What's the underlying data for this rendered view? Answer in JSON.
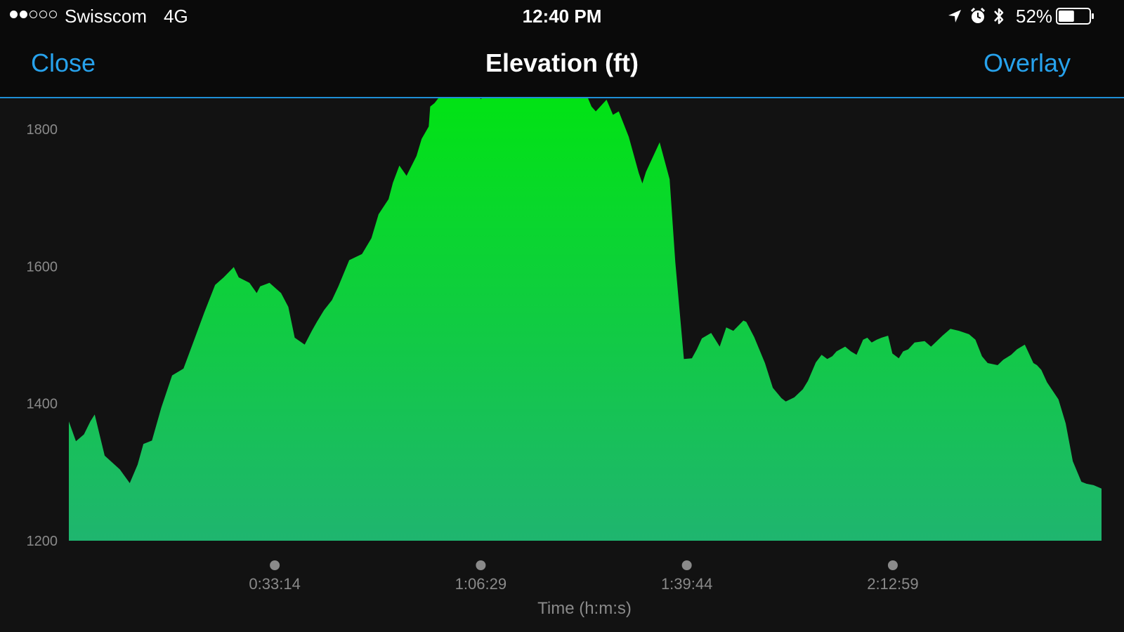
{
  "status_bar": {
    "carrier": "Swisscom",
    "network": "4G",
    "time": "12:40 PM",
    "battery_percent": "52%",
    "battery_level": 0.52,
    "signal_bars_filled": 2,
    "signal_bars_total": 5,
    "icons": [
      "location-arrow-icon",
      "alarm-icon",
      "bluetooth-icon",
      "battery-icon"
    ]
  },
  "nav": {
    "close_label": "Close",
    "title": "Elevation (ft)",
    "overlay_label": "Overlay"
  },
  "colors": {
    "accent": "#27a2ec",
    "fill_top": "#00e510",
    "fill_bottom": "#1fb56f",
    "background": "#121212",
    "bar_background": "#0a0a0a"
  },
  "chart_data": {
    "type": "area",
    "title": "Elevation (ft)",
    "xlabel": "Time (h:m:s)",
    "ylabel": "",
    "ylim": [
      1200,
      1800
    ],
    "y_ticks": [
      1800,
      1600,
      1400,
      1200
    ],
    "x_ticks": [
      {
        "seconds": 1994,
        "label": "0:33:14"
      },
      {
        "seconds": 3989,
        "label": "1:06:29"
      },
      {
        "seconds": 5984,
        "label": "1:39:44"
      },
      {
        "seconds": 7979,
        "label": "2:12:59"
      }
    ],
    "xlim_seconds": [
      0,
      10000
    ],
    "grid": false,
    "series": [
      {
        "x_seconds": [
          0,
          69,
          146,
          208,
          250,
          347,
          493,
          590,
          666,
          722,
          805,
          895,
          1000,
          1110,
          1214,
          1312,
          1416,
          1499,
          1597,
          1645,
          1749,
          1819,
          1853,
          1943,
          2055,
          2125,
          2187,
          2284,
          2353,
          2402,
          2471,
          2548,
          2610,
          2715,
          2839,
          2930,
          2999,
          3096,
          3138,
          3201,
          3270,
          3367,
          3416,
          3485,
          3499,
          3541,
          3603,
          3700,
          3762,
          3790,
          3825,
          3888,
          3936,
          3992,
          4047,
          4124,
          4193,
          4262,
          4304,
          4381,
          4485,
          4569,
          4742,
          4957,
          5019,
          5061,
          5103,
          5207,
          5269,
          5325,
          5422,
          5519,
          5554,
          5589,
          5721,
          5818,
          5873,
          5956,
          6033,
          6081,
          6130,
          6220,
          6303,
          6366,
          6435,
          6532,
          6560,
          6636,
          6741,
          6817,
          6900,
          6942,
          7025,
          7108,
          7157,
          7233,
          7289,
          7344,
          7393,
          7434,
          7518,
          7573,
          7628,
          7691,
          7732,
          7774,
          7823,
          7871,
          7933,
          7975,
          8037,
          8079,
          8128,
          8190,
          8287,
          8349,
          8391,
          8460,
          8537,
          8620,
          8717,
          8779,
          8842,
          8897,
          8994,
          9049,
          9125,
          9181,
          9257,
          9340,
          9375,
          9417,
          9472,
          9583,
          9653,
          9722,
          9805,
          9854,
          9923,
          10000
        ],
        "values": [
          1374,
          1345,
          1355,
          1374,
          1384,
          1324,
          1304,
          1284,
          1311,
          1341,
          1346,
          1394,
          1441,
          1451,
          1493,
          1533,
          1573,
          1584,
          1599,
          1584,
          1576,
          1561,
          1571,
          1576,
          1561,
          1541,
          1496,
          1486,
          1506,
          1519,
          1536,
          1551,
          1571,
          1609,
          1618,
          1641,
          1676,
          1698,
          1722,
          1747,
          1732,
          1761,
          1786,
          1804,
          1833,
          1838,
          1850,
          1866,
          1876,
          1866,
          1859,
          1851,
          1849,
          1844,
          1853,
          1859,
          1869,
          1873,
          1866,
          1869,
          1854,
          1851,
          1846,
          1850,
          1848,
          1833,
          1826,
          1843,
          1821,
          1826,
          1789,
          1736,
          1721,
          1738,
          1781,
          1727,
          1606,
          1465,
          1466,
          1479,
          1495,
          1503,
          1483,
          1511,
          1506,
          1521,
          1519,
          1497,
          1459,
          1423,
          1408,
          1403,
          1409,
          1421,
          1433,
          1460,
          1471,
          1465,
          1469,
          1476,
          1483,
          1476,
          1471,
          1493,
          1496,
          1489,
          1493,
          1496,
          1499,
          1473,
          1466,
          1476,
          1479,
          1489,
          1491,
          1483,
          1489,
          1499,
          1509,
          1506,
          1501,
          1493,
          1469,
          1459,
          1456,
          1464,
          1471,
          1479,
          1486,
          1459,
          1456,
          1449,
          1431,
          1406,
          1371,
          1316,
          1286,
          1283,
          1281,
          1276
        ]
      }
    ]
  }
}
